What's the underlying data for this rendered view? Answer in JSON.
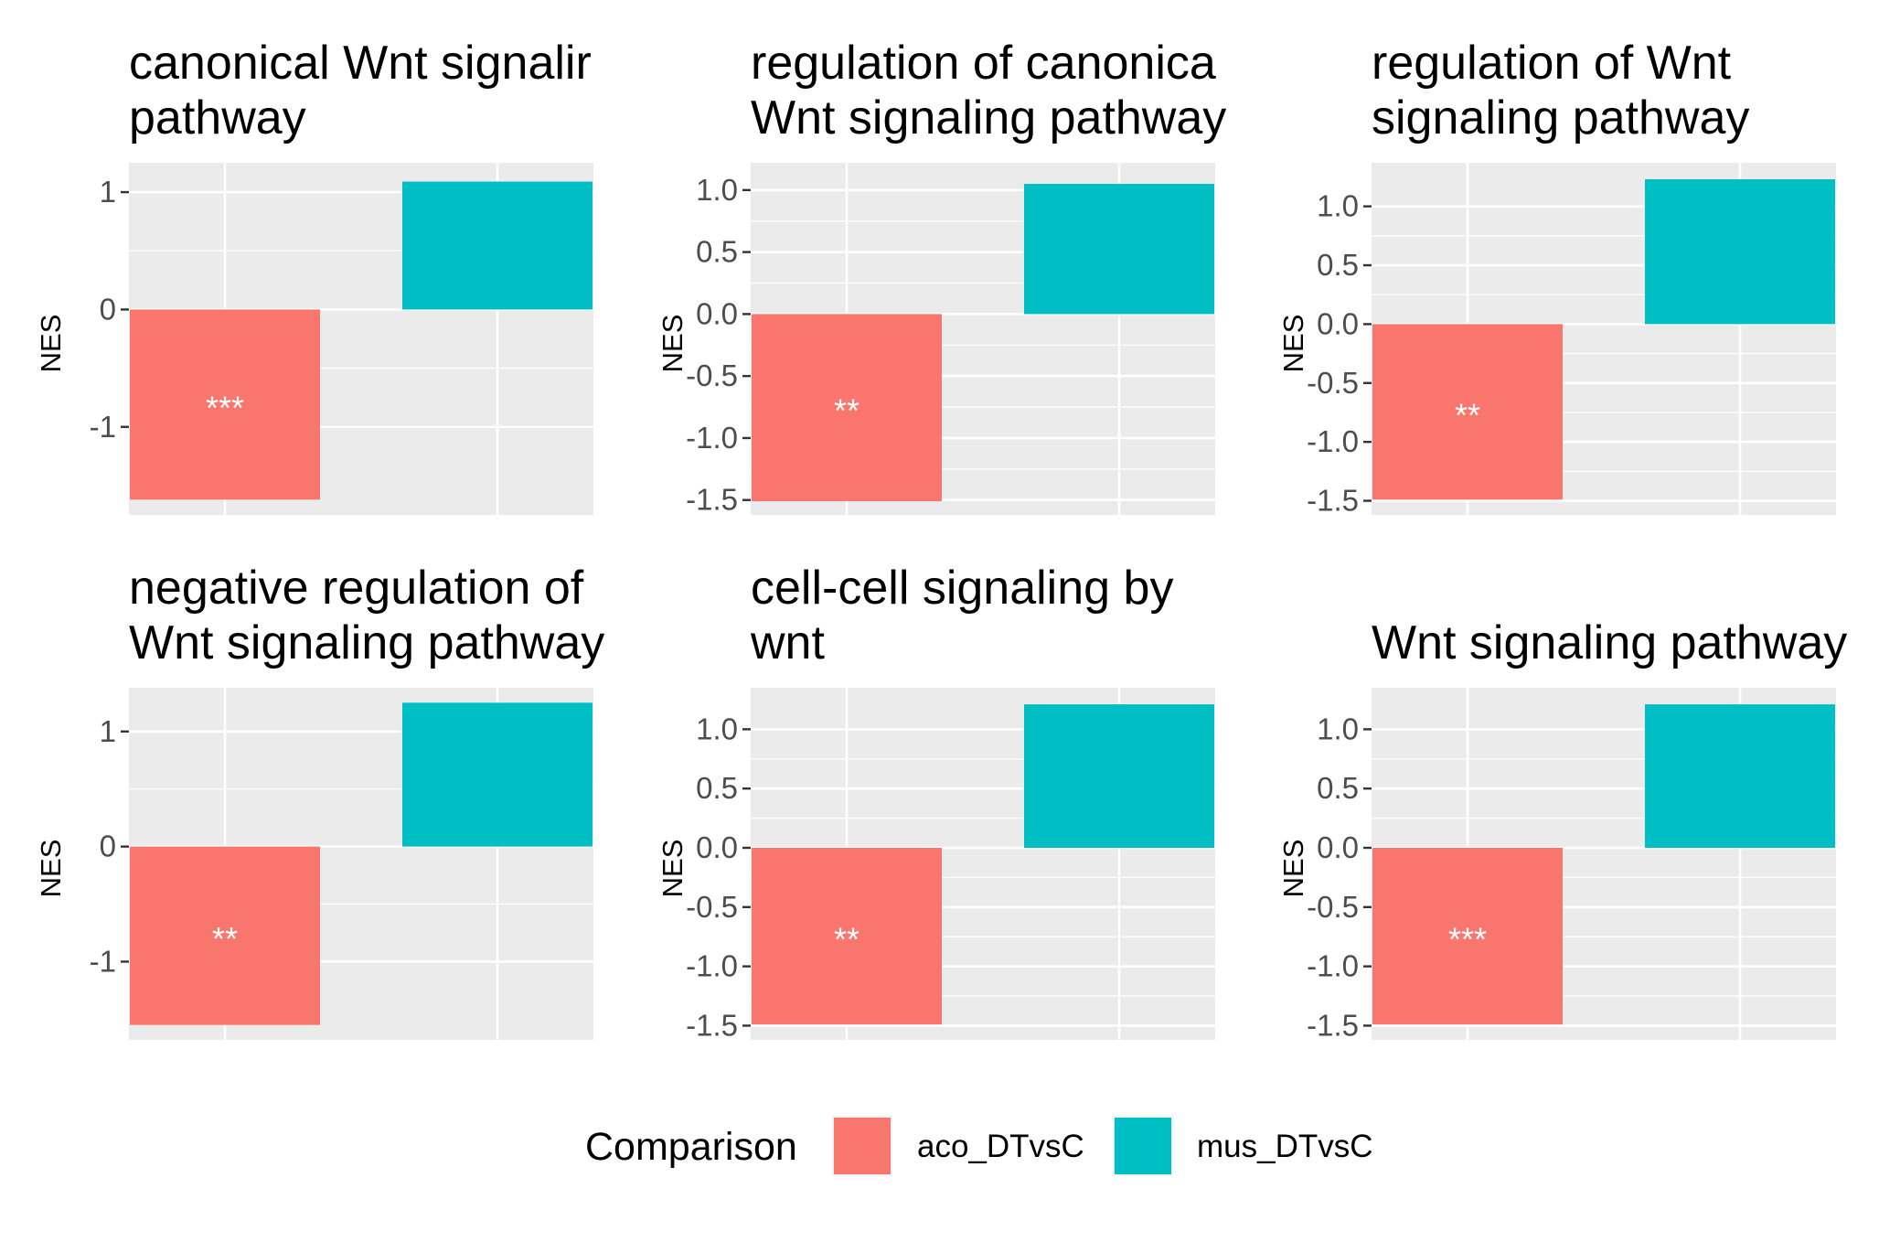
{
  "chart_data": [
    {
      "type": "bar",
      "title": "canonical Wnt signaling pathway",
      "title_lines": [
        "canonical Wnt signalir",
        "pathway"
      ],
      "ylabel": "NES",
      "ylim": [
        -1.75,
        1.25
      ],
      "yticks": [
        -1,
        0,
        1
      ],
      "ytick_labels": [
        "-1",
        "0",
        "1"
      ],
      "series": [
        {
          "name": "aco_DTvsC",
          "value": -1.62,
          "label": "***"
        },
        {
          "name": "mus_DTvsC",
          "value": 1.09,
          "label": ""
        }
      ]
    },
    {
      "type": "bar",
      "title": "regulation of canonical Wnt signaling pathway",
      "title_lines": [
        "regulation of canonica",
        "Wnt signaling pathwaу"
      ],
      "ylabel": "NES",
      "ylim": [
        -1.62,
        1.22
      ],
      "yticks": [
        -1.5,
        -1.0,
        -0.5,
        0.0,
        0.5,
        1.0
      ],
      "ytick_labels": [
        "-1.5",
        "-1.0",
        "-0.5",
        "0.0",
        "0.5",
        "1.0"
      ],
      "series": [
        {
          "name": "aco_DTvsC",
          "value": -1.51,
          "label": "**"
        },
        {
          "name": "mus_DTvsC",
          "value": 1.05,
          "label": ""
        }
      ]
    },
    {
      "type": "bar",
      "title": "regulation of Wnt signaling pathway",
      "title_lines": [
        "regulation of Wnt",
        "signaling pathway"
      ],
      "ylabel": "NES",
      "ylim": [
        -1.62,
        1.37
      ],
      "yticks": [
        -1.5,
        -1.0,
        -0.5,
        0.0,
        0.5,
        1.0
      ],
      "ytick_labels": [
        "-1.5",
        "-1.0",
        "-0.5",
        "0.0",
        "0.5",
        "1.0"
      ],
      "series": [
        {
          "name": "aco_DTvsC",
          "value": -1.49,
          "label": "**"
        },
        {
          "name": "mus_DTvsC",
          "value": 1.23,
          "label": ""
        }
      ]
    },
    {
      "type": "bar",
      "title": "negative regulation of Wnt signaling pathway",
      "title_lines": [
        "negative regulation of",
        "Wnt signaling pathwaу"
      ],
      "ylabel": "NES",
      "ylim": [
        -1.68,
        1.38
      ],
      "yticks": [
        -1,
        0,
        1
      ],
      "ytick_labels": [
        "-1",
        "0",
        "1"
      ],
      "series": [
        {
          "name": "aco_DTvsC",
          "value": -1.55,
          "label": "**"
        },
        {
          "name": "mus_DTvsC",
          "value": 1.25,
          "label": ""
        }
      ]
    },
    {
      "type": "bar",
      "title": "cell-cell signaling by wnt",
      "title_lines": [
        "cell-cell signaling by",
        "wnt"
      ],
      "ylabel": "NES",
      "ylim": [
        -1.62,
        1.35
      ],
      "yticks": [
        -1.5,
        -1.0,
        -0.5,
        0.0,
        0.5,
        1.0
      ],
      "ytick_labels": [
        "-1.5",
        "-1.0",
        "-0.5",
        "0.0",
        "0.5",
        "1.0"
      ],
      "series": [
        {
          "name": "aco_DTvsC",
          "value": -1.49,
          "label": "**"
        },
        {
          "name": "mus_DTvsC",
          "value": 1.21,
          "label": ""
        }
      ]
    },
    {
      "type": "bar",
      "title": "Wnt signaling pathway",
      "title_lines": [
        "Wnt signaling pathway"
      ],
      "ylabel": "NES",
      "ylim": [
        -1.62,
        1.35
      ],
      "yticks": [
        -1.5,
        -1.0,
        -0.5,
        0.0,
        0.5,
        1.0
      ],
      "ytick_labels": [
        "-1.5",
        "-1.0",
        "-0.5",
        "0.0",
        "0.5",
        "1.0"
      ],
      "series": [
        {
          "name": "aco_DTvsC",
          "value": -1.49,
          "label": "***"
        },
        {
          "name": "mus_DTvsC",
          "value": 1.21,
          "label": ""
        }
      ]
    }
  ],
  "legend": {
    "title": "Comparison",
    "placement": "bottom",
    "items": [
      {
        "label": "aco_DTvsC",
        "color": "#F8766D"
      },
      {
        "label": "mus_DTvsC",
        "color": "#00BFC4"
      }
    ]
  },
  "colors": {
    "aco_DTvsC": "#F8766D",
    "mus_DTvsC": "#00BFC4",
    "panel_background": "#EBEBEB",
    "grid": "#FFFFFF"
  }
}
